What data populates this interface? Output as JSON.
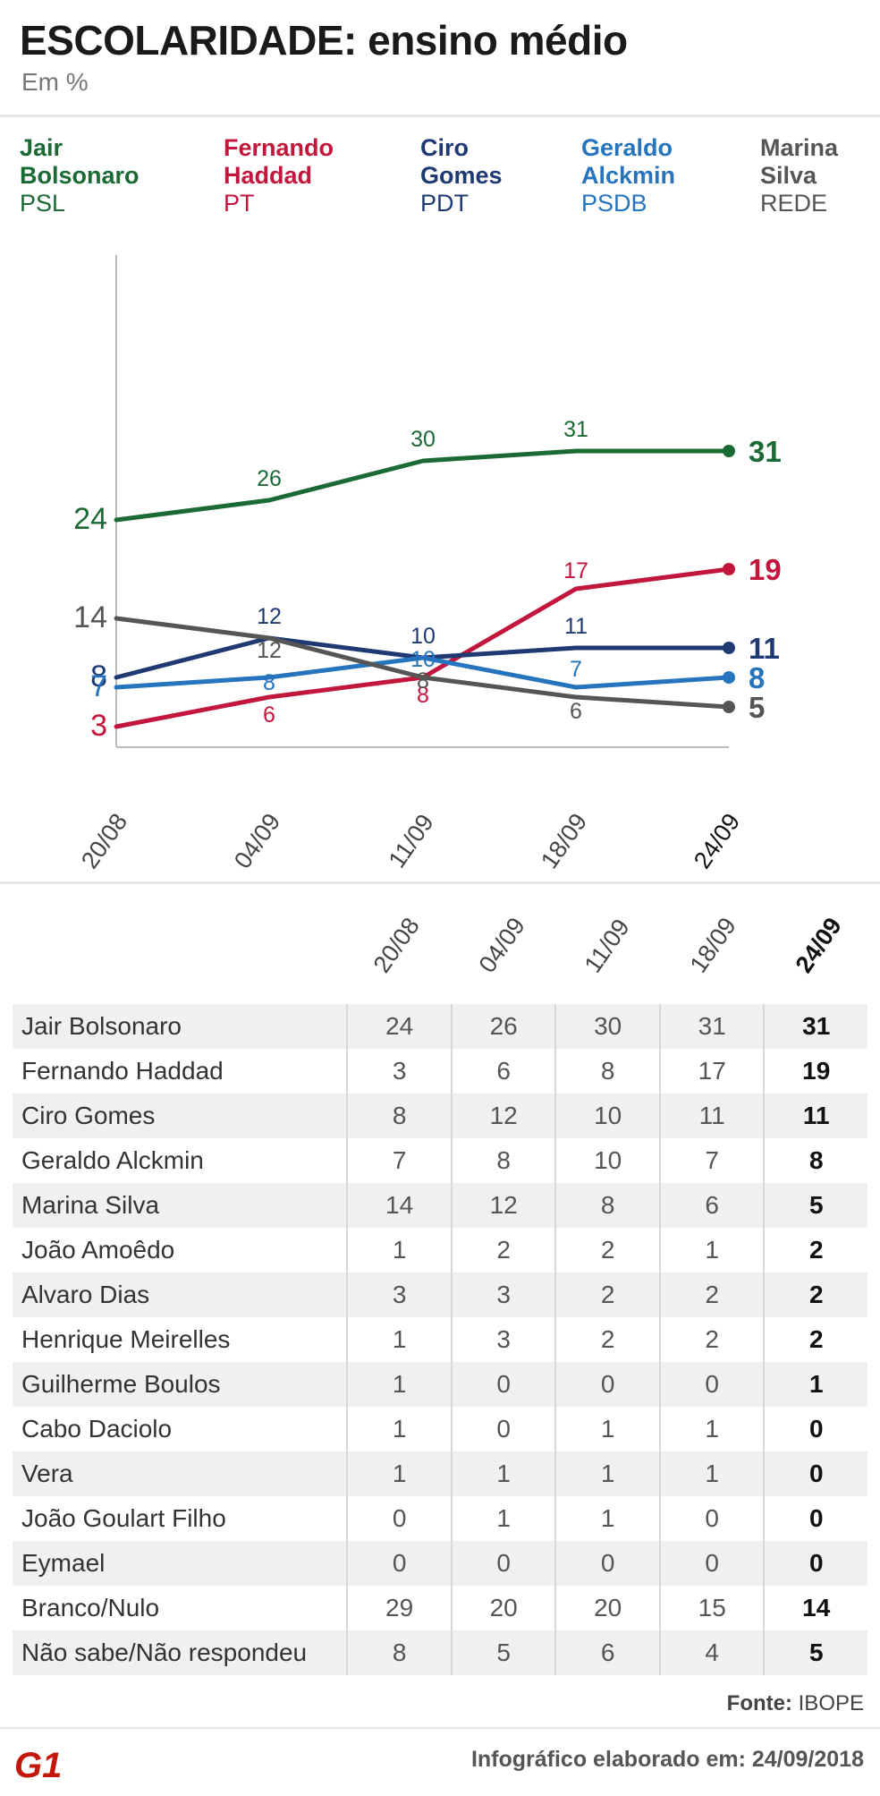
{
  "header": {
    "title": "ESCOLARIDADE: ensino médio",
    "subtitle": "Em %"
  },
  "legend": [
    {
      "name_line1": "Jair",
      "name_line2": "Bolsonaro",
      "party": "PSL",
      "color": "#1b6a35"
    },
    {
      "name_line1": "Fernando",
      "name_line2": "Haddad",
      "party": "PT",
      "color": "#c2163c"
    },
    {
      "name_line1": "Ciro",
      "name_line2": "Gomes",
      "party": "PDT",
      "color": "#1f3a73"
    },
    {
      "name_line1": "Geraldo",
      "name_line2": "Alckmin",
      "party": "PSDB",
      "color": "#2574bd"
    },
    {
      "name_line1": "Marina",
      "name_line2": "Silva",
      "party": "REDE",
      "color": "#555555"
    }
  ],
  "chart_data": {
    "type": "line",
    "title": "ESCOLARIDADE: ensino médio",
    "ylabel": "Em %",
    "x": [
      "20/08",
      "04/09",
      "11/09",
      "18/09",
      "24/09"
    ],
    "ylim": [
      0,
      32
    ],
    "series": [
      {
        "name": "Jair Bolsonaro",
        "color": "#1b6a35",
        "values": [
          24,
          26,
          30,
          31,
          31
        ]
      },
      {
        "name": "Fernando Haddad",
        "color": "#c2163c",
        "values": [
          3,
          6,
          8,
          17,
          19
        ]
      },
      {
        "name": "Ciro Gomes",
        "color": "#1f3a73",
        "values": [
          8,
          12,
          10,
          11,
          11
        ]
      },
      {
        "name": "Geraldo Alckmin",
        "color": "#2574bd",
        "values": [
          7,
          8,
          10,
          7,
          8
        ]
      },
      {
        "name": "Marina Silva",
        "color": "#555555",
        "values": [
          14,
          12,
          8,
          6,
          5
        ]
      }
    ]
  },
  "table": {
    "columns": [
      "20/08",
      "04/09",
      "11/09",
      "18/09",
      "24/09"
    ],
    "rows": [
      {
        "name": "Jair Bolsonaro",
        "values": [
          "24",
          "26",
          "30",
          "31",
          "31"
        ]
      },
      {
        "name": "Fernando Haddad",
        "values": [
          "3",
          "6",
          "8",
          "17",
          "19"
        ]
      },
      {
        "name": "Ciro Gomes",
        "values": [
          "8",
          "12",
          "10",
          "11",
          "11"
        ]
      },
      {
        "name": "Geraldo Alckmin",
        "values": [
          "7",
          "8",
          "10",
          "7",
          "8"
        ]
      },
      {
        "name": "Marina Silva",
        "values": [
          "14",
          "12",
          "8",
          "6",
          "5"
        ]
      },
      {
        "name": "João Amoêdo",
        "values": [
          "1",
          "2",
          "2",
          "1",
          "2"
        ]
      },
      {
        "name": "Alvaro Dias",
        "values": [
          "3",
          "3",
          "2",
          "2",
          "2"
        ]
      },
      {
        "name": "Henrique Meirelles",
        "values": [
          "1",
          "3",
          "2",
          "2",
          "2"
        ]
      },
      {
        "name": "Guilherme Boulos",
        "values": [
          "1",
          "0",
          "0",
          "0",
          "1"
        ]
      },
      {
        "name": "Cabo Daciolo",
        "values": [
          "1",
          "0",
          "1",
          "1",
          "0"
        ]
      },
      {
        "name": "Vera",
        "values": [
          "1",
          "1",
          "1",
          "1",
          "0"
        ]
      },
      {
        "name": "João Goulart Filho",
        "values": [
          "0",
          "1",
          "1",
          "0",
          "0"
        ]
      },
      {
        "name": "Eymael",
        "values": [
          "0",
          "0",
          "0",
          "0",
          "0"
        ]
      },
      {
        "name": "Branco/Nulo",
        "values": [
          "29",
          "20",
          "20",
          "15",
          "14"
        ]
      },
      {
        "name": "Não sabe/Não respondeu",
        "values": [
          "8",
          "5",
          "6",
          "4",
          "5"
        ]
      }
    ]
  },
  "footer": {
    "source_label": "Fonte:",
    "source_value": "IBOPE",
    "logo_text": "G1",
    "made_label": "Infográfico elaborado em: 24/09/2018"
  }
}
